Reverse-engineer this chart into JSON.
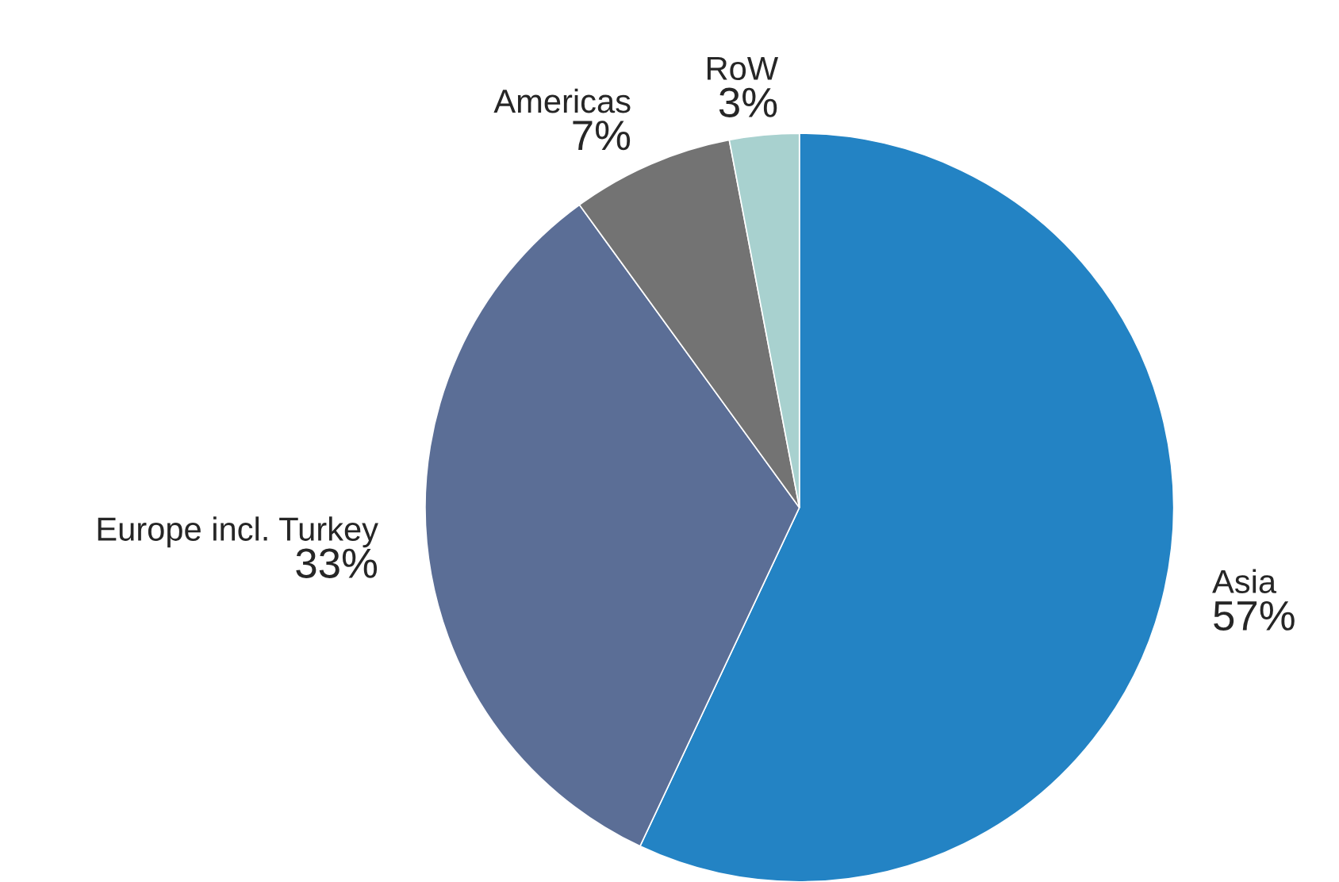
{
  "chart_data": {
    "type": "pie",
    "categories": [
      "Asia",
      "Europe incl. Turkey",
      "Americas",
      "RoW"
    ],
    "values": [
      57,
      33,
      7,
      3
    ],
    "value_labels": [
      "57%",
      "33%",
      "7%",
      "3%"
    ],
    "colors": [
      "#2383c4",
      "#5b6e96",
      "#737373",
      "#a8d1cf"
    ]
  }
}
